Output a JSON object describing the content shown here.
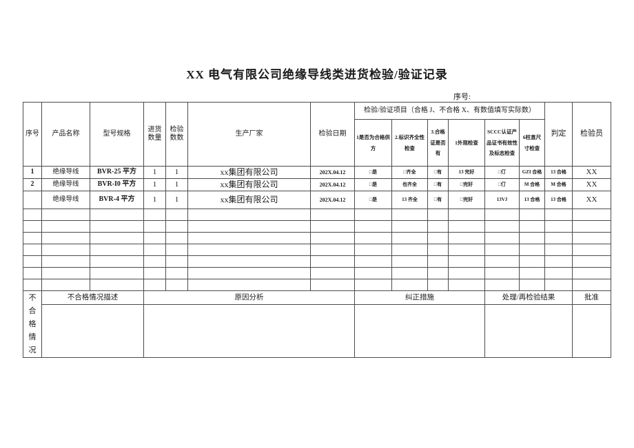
{
  "page": {
    "title": "XX 电气有限公司绝缘导线类进货检验/验证记录",
    "serial_label": "序号:"
  },
  "table": {
    "empty_row_count": 7,
    "headers": {
      "seq": "序号",
      "product": "产品名称",
      "model": "型号规格",
      "qty_in": "进货数量",
      "qty_chk": "检验数数",
      "maker": "生产厂家",
      "date": "检验日期",
      "items_group": "检验/验证项目（合格 J、不合格 X、有数值填写实际数）",
      "item1": "1是否为合格供方",
      "item2": "2.标识齐全性检查",
      "item3": "3.合格证是否有",
      "item4": "1外观检查",
      "item5": "SCCC认证产品证书有效性及标志检查",
      "item6": "6柱直尺寸检查",
      "judge": "判定",
      "inspector": "检验员"
    },
    "rows": [
      {
        "seq": "1",
        "product": "绝缘导线",
        "model": "BVR-25 平方",
        "qty_in": "1",
        "qty_chk": "1",
        "maker": "xx集团有限公司",
        "date": "202X.04.12",
        "item1": "□是",
        "item2": "□齐全",
        "item3": "□有",
        "item4": "13 完好",
        "item5": "□仃",
        "item6": "GZI 合格",
        "judge": "13 合格",
        "inspector": "XX"
      },
      {
        "seq": "2",
        "product": "绝缘导线",
        "model": "BVR-I0 平方",
        "qty_in": "1",
        "qty_chk": "1",
        "maker": "xx集团有限公司",
        "date": "202X.04.12",
        "item1": "□是",
        "item2": "也齐全",
        "item3": "□有",
        "item4": "□完好",
        "item5": "□仃",
        "item6": "M 合格",
        "judge": "M 合格",
        "inspector": "XX"
      },
      {
        "seq": "",
        "product": "绝缘导线",
        "model": "BVR-4 平方",
        "qty_in": "1",
        "qty_chk": "1",
        "maker": "xx集团有限公司",
        "date": "202X.04.12",
        "item1": "□是",
        "item2": "13 齐全",
        "item3": "□有",
        "item4": "□完好",
        "item5": "13VJ",
        "item6": "13 合格",
        "judge": "13 合格",
        "inspector": "XX"
      }
    ]
  },
  "nonconformity": {
    "side_label": "不合格情况",
    "desc_header": "不合格情况描述",
    "cause_header": "原因分析",
    "action_header": "纠正措施",
    "result_header": "处理/再检验结果",
    "approve_header": "批准"
  }
}
